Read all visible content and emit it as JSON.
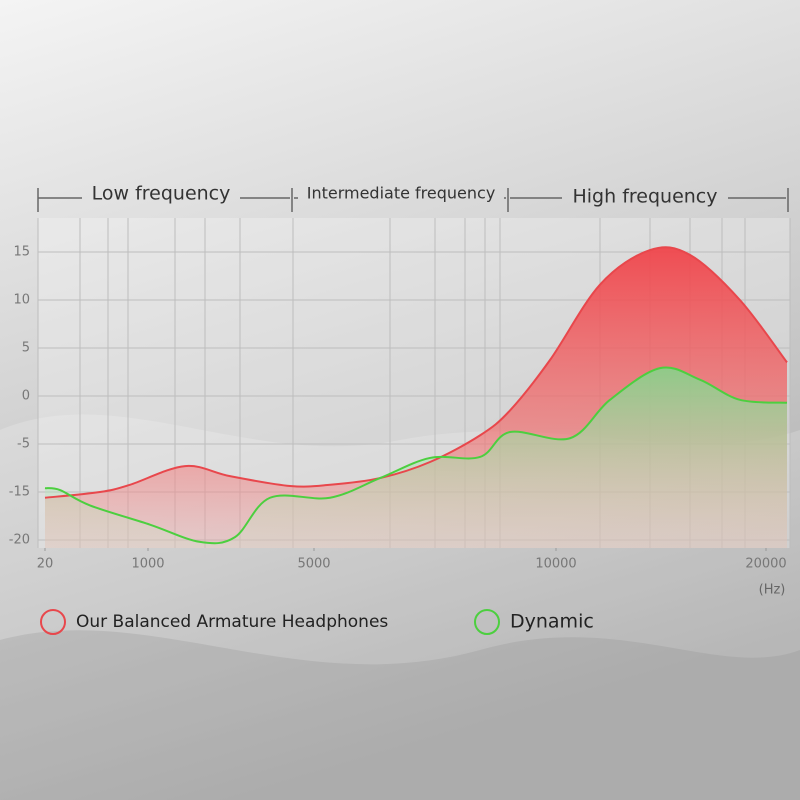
{
  "chart_data": {
    "type": "area",
    "bands": [
      "Low frequency",
      "Intermediate frequency",
      "High frequency"
    ],
    "xlabel": "(Hz)",
    "xlim": [
      20,
      21000
    ],
    "xticks": [
      20,
      1000,
      5000,
      10000,
      20000
    ],
    "ylim": [
      -21,
      18.5
    ],
    "yticks": [
      15,
      10,
      5,
      0,
      -5,
      -15,
      -20
    ],
    "grid": true,
    "legend": "bottom",
    "series": [
      {
        "name": "Our Balanced Armature Headphones",
        "color": "#e8474c",
        "x": [
          20,
          543,
          828,
          1892,
          2976,
          4422,
          5331,
          6364,
          7397,
          8430,
          9050,
          9876,
          12094,
          14474,
          16378,
          18758,
          21000
        ],
        "values": [
          -15.6,
          -15,
          -13.5,
          -9.6,
          -11.7,
          -13.75,
          -13.5,
          -12.1,
          -8.75,
          -4.1,
          -1.5,
          3.75,
          11.6,
          15.2,
          14.7,
          10,
          3.5
        ]
      },
      {
        "name": "Dynamic",
        "color": "#4ccf3f",
        "x": [
          20,
          163,
          448,
          1048,
          2253,
          3096,
          3940,
          5331,
          6364,
          7397,
          8430,
          9050,
          10666,
          12570,
          14950,
          16854,
          18758,
          21000
        ],
        "values": [
          -14.2,
          -14.6,
          -16.4,
          -18.4,
          -20.2,
          -19.7,
          -15.6,
          -15.6,
          -12.1,
          -7.9,
          -7.7,
          -3.75,
          -4.4,
          -0.4,
          2.9,
          1.7,
          -0.4,
          -0.7
        ]
      }
    ]
  }
}
